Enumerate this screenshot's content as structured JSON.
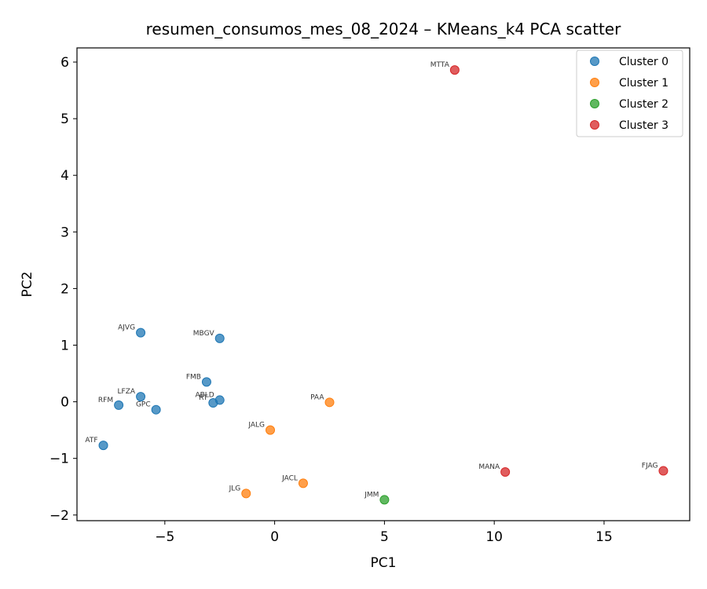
{
  "chart_data": {
    "type": "scatter",
    "title": "resumen_consumos_mes_08_2024 – KMeans_k4 PCA scatter",
    "xlabel": "PC1",
    "ylabel": "PC2",
    "xlim": [
      -9.0,
      18.9
    ],
    "ylim": [
      -2.1,
      6.25
    ],
    "x_ticks": [
      -5,
      0,
      5,
      10,
      15
    ],
    "x_tick_labels": [
      "−5",
      "0",
      "5",
      "10",
      "15"
    ],
    "y_ticks": [
      -2,
      -1,
      0,
      1,
      2,
      3,
      4,
      5,
      6
    ],
    "y_tick_labels": [
      "−2",
      "−1",
      "0",
      "1",
      "2",
      "3",
      "4",
      "5",
      "6"
    ],
    "grid": false,
    "legend_position": "top-right",
    "series": [
      {
        "name": "Cluster 0",
        "color": "#1f77b4",
        "points": [
          {
            "label": "AJVG",
            "x": -6.1,
            "y": 1.22
          },
          {
            "label": "MBGV",
            "x": -2.5,
            "y": 1.12
          },
          {
            "label": "FMB",
            "x": -3.1,
            "y": 0.35
          },
          {
            "label": "LFZA",
            "x": -6.1,
            "y": 0.09
          },
          {
            "label": "ABLD",
            "x": -2.5,
            "y": 0.03
          },
          {
            "label": "RT",
            "x": -2.8,
            "y": -0.02
          },
          {
            "label": "RFM",
            "x": -7.1,
            "y": -0.06
          },
          {
            "label": "GPC",
            "x": -5.4,
            "y": -0.14
          },
          {
            "label": "ATF",
            "x": -7.8,
            "y": -0.77
          }
        ]
      },
      {
        "name": "Cluster 1",
        "color": "#ff7f0e",
        "points": [
          {
            "label": "PAA",
            "x": 2.5,
            "y": -0.01
          },
          {
            "label": "JALG",
            "x": -0.2,
            "y": -0.5
          },
          {
            "label": "JACL",
            "x": 1.3,
            "y": -1.44
          },
          {
            "label": "JLG",
            "x": -1.3,
            "y": -1.62
          }
        ]
      },
      {
        "name": "Cluster 2",
        "color": "#2ca02c",
        "points": [
          {
            "label": "JMM",
            "x": 5.0,
            "y": -1.73
          }
        ]
      },
      {
        "name": "Cluster 3",
        "color": "#d62728",
        "points": [
          {
            "label": "MTTA",
            "x": 8.2,
            "y": 5.86
          },
          {
            "label": "MANA",
            "x": 10.5,
            "y": -1.24
          },
          {
            "label": "FJAG",
            "x": 17.7,
            "y": -1.22
          }
        ]
      }
    ]
  }
}
